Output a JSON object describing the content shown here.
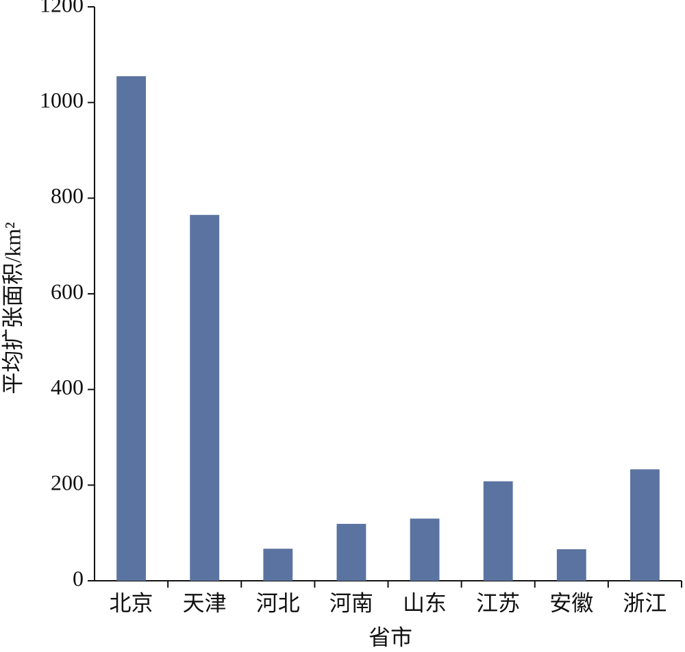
{
  "chart_data": {
    "type": "bar",
    "x_label": "省市",
    "y_label": "平均扩张面积/km²",
    "categories": [
      "北京",
      "天津",
      "河北",
      "河南",
      "山东",
      "江苏",
      "安徽",
      "浙江"
    ],
    "values": [
      1055,
      765,
      67,
      119,
      130,
      208,
      66,
      233
    ],
    "color": "#5b73a0",
    "ylim": [
      0,
      1200
    ],
    "yticks": [
      0,
      200,
      400,
      600,
      800,
      1000,
      1200
    ],
    "grid": false
  }
}
